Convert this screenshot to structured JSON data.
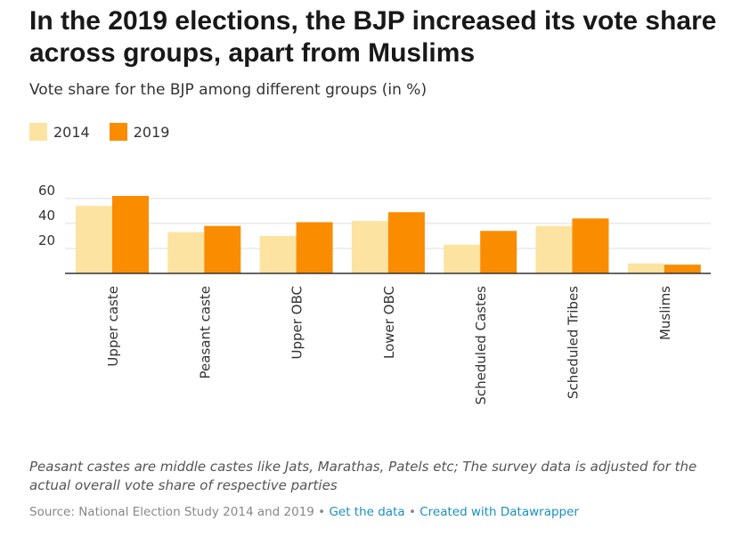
{
  "colors": {
    "series_2014": "#fde3a1",
    "series_2019": "#fa8c00",
    "gridline": "#dddddd",
    "baseline": "#333333",
    "link": "#1a8fbf"
  },
  "chart_data": {
    "type": "bar",
    "title": "In the 2019 elections, the BJP increased its vote share across groups, apart from Muslims",
    "subtitle": "Vote share for the BJP among different groups (in %)",
    "categories": [
      "Upper caste",
      "Peasant caste",
      "Upper OBC",
      "Lower OBC",
      "Scheduled Castes",
      "Scheduled Tribes",
      "Muslims"
    ],
    "series": [
      {
        "name": "2014",
        "values": [
          54,
          33,
          30,
          42,
          23,
          38,
          8
        ]
      },
      {
        "name": "2019",
        "values": [
          62,
          38,
          41,
          49,
          34,
          44,
          7
        ]
      }
    ],
    "yticks": [
      "20",
      "40",
      "60"
    ],
    "ylim": [
      0,
      65
    ],
    "grid": true,
    "legend_position": "top-left",
    "xlabel": "",
    "ylabel": ""
  },
  "footer": {
    "note": "Peasant castes are middle castes like Jats, Marathas, Patels etc; The survey data is adjusted for the actual overall vote share of respective parties",
    "source": "Source: National Election Study 2014 and 2019",
    "separator": "•",
    "get_data_link": "Get the data",
    "created_with_link": "Created with Datawrapper"
  }
}
